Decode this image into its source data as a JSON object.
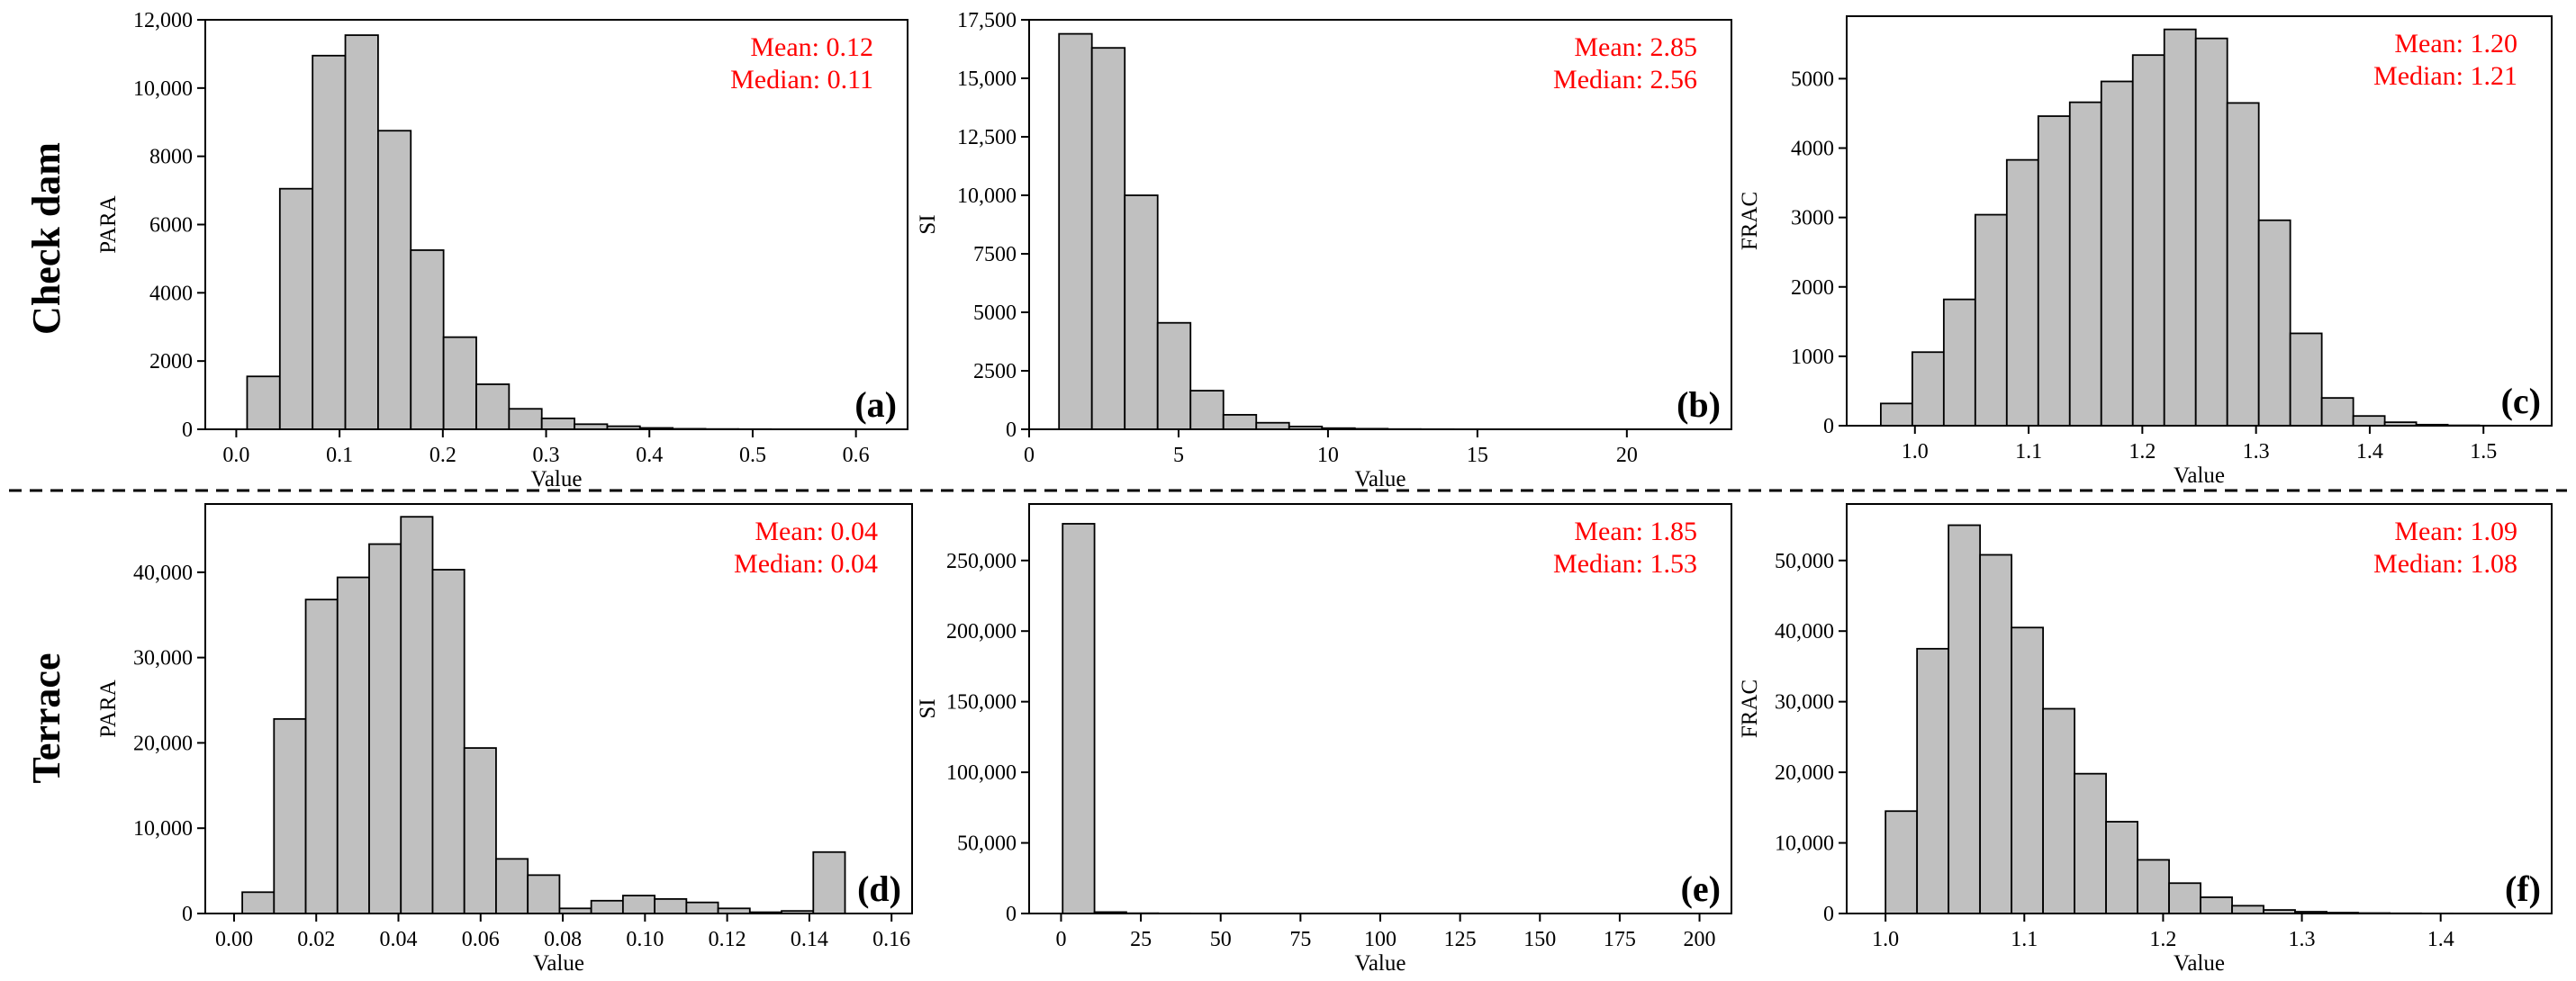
{
  "row_labels": [
    "Check dam",
    "Terrace"
  ],
  "colors": {
    "bar_fill": "#c0c0c0",
    "bar_stroke": "#000000",
    "stats_text": "#ff0000",
    "axis": "#000000"
  },
  "chart_data": [
    {
      "type": "bar",
      "panel": "(a)",
      "xlabel": "Value",
      "ylabel": "PARA",
      "stats": {
        "mean": "Mean: 0.12",
        "median": "Median: 0.11"
      },
      "xlim": [
        -0.03,
        0.65
      ],
      "ylim": [
        0,
        12000
      ],
      "xticks": [
        0.0,
        0.1,
        0.2,
        0.3,
        0.4,
        0.5,
        0.6
      ],
      "xtick_labels": [
        "0.0",
        "0.1",
        "0.2",
        "0.3",
        "0.4",
        "0.5",
        "0.6"
      ],
      "yticks": [
        0,
        2000,
        4000,
        6000,
        8000,
        10000,
        12000
      ],
      "ytick_labels": [
        "0",
        "2000",
        "4000",
        "6000",
        "8000",
        "10,000",
        "12,000"
      ],
      "bin_start": 0.0105,
      "bin_width": 0.0317,
      "values": [
        1550,
        7050,
        10950,
        11550,
        8750,
        5250,
        2700,
        1320,
        600,
        320,
        150,
        90,
        40,
        15,
        8,
        5,
        3,
        2,
        1,
        1
      ]
    },
    {
      "type": "bar",
      "panel": "(b)",
      "xlabel": "Value",
      "ylabel": "SI",
      "stats": {
        "mean": "Mean: 2.85",
        "median": "Median: 2.56"
      },
      "xlim": [
        0,
        23.5
      ],
      "ylim": [
        0,
        17500
      ],
      "xticks": [
        0,
        5,
        10,
        15,
        20
      ],
      "xtick_labels": [
        "0",
        "5",
        "10",
        "15",
        "20"
      ],
      "yticks": [
        0,
        2500,
        5000,
        7500,
        10000,
        12500,
        15000,
        17500
      ],
      "ytick_labels": [
        "0",
        "2500",
        "5000",
        "7500",
        "10,000",
        "12,500",
        "15,000",
        "17,500"
      ],
      "bin_start": 1.0,
      "bin_width": 1.1,
      "values": [
        16900,
        16300,
        10000,
        4550,
        1650,
        620,
        280,
        120,
        50,
        25,
        10,
        6,
        4,
        3,
        2,
        1,
        1,
        1,
        0,
        0
      ]
    },
    {
      "type": "bar",
      "panel": "(c)",
      "xlabel": "Value",
      "ylabel": "FRAC",
      "stats": {
        "mean": "Mean: 1.20",
        "median": "Median: 1.21"
      },
      "xlim": [
        0.94,
        1.56
      ],
      "ylim": [
        0,
        5900
      ],
      "xticks": [
        1.0,
        1.1,
        1.2,
        1.3,
        1.4,
        1.5
      ],
      "xtick_labels": [
        "1.0",
        "1.1",
        "1.2",
        "1.3",
        "1.4",
        "1.5"
      ],
      "yticks": [
        0,
        1000,
        2000,
        3000,
        4000,
        5000
      ],
      "ytick_labels": [
        "0",
        "1000",
        "2000",
        "3000",
        "4000",
        "5000"
      ],
      "bin_start": 0.97,
      "bin_width": 0.0277,
      "values": [
        320,
        1060,
        1820,
        3040,
        3830,
        4460,
        4660,
        4960,
        5340,
        5710,
        5580,
        4650,
        2960,
        1330,
        400,
        140,
        50,
        15,
        5,
        2
      ]
    },
    {
      "type": "bar",
      "panel": "(d)",
      "xlabel": "Value",
      "ylabel": "PARA",
      "stats": {
        "mean": "Mean: 0.04",
        "median": "Median: 0.04"
      },
      "xlim": [
        -0.007,
        0.165
      ],
      "ylim": [
        0,
        48000
      ],
      "xticks": [
        0.0,
        0.02,
        0.04,
        0.06,
        0.08,
        0.1,
        0.12,
        0.14,
        0.16
      ],
      "xtick_labels": [
        "0.00",
        "0.02",
        "0.04",
        "0.06",
        "0.08",
        "0.10",
        "0.12",
        "0.14",
        "0.16"
      ],
      "yticks": [
        0,
        10000,
        20000,
        30000,
        40000
      ],
      "ytick_labels": [
        "0",
        "10,000",
        "20,000",
        "30,000",
        "40,000"
      ],
      "bin_start": 0.002,
      "bin_width": 0.00772,
      "values": [
        2500,
        22800,
        36800,
        39400,
        43300,
        46500,
        40300,
        19400,
        6400,
        4500,
        600,
        1500,
        2100,
        1700,
        1300,
        600,
        150,
        300,
        7200,
        0
      ]
    },
    {
      "type": "bar",
      "panel": "(e)",
      "xlabel": "Value",
      "ylabel": "SI",
      "stats": {
        "mean": "Mean: 1.85",
        "median": "Median: 1.53"
      },
      "xlim": [
        -10,
        210
      ],
      "ylim": [
        0,
        290000
      ],
      "xticks": [
        0,
        25,
        50,
        75,
        100,
        125,
        150,
        175,
        200
      ],
      "xtick_labels": [
        "0",
        "25",
        "50",
        "75",
        "100",
        "125",
        "150",
        "175",
        "200"
      ],
      "yticks": [
        0,
        50000,
        100000,
        150000,
        200000,
        250000
      ],
      "ytick_labels": [
        "0",
        "50,000",
        "100,000",
        "150,000",
        "200,000",
        "250,000"
      ],
      "bin_start": 0.5,
      "bin_width": 9.97,
      "values": [
        276000,
        1000,
        200,
        100,
        50,
        30,
        20,
        10,
        8,
        5,
        4,
        3,
        2,
        2,
        1,
        1,
        1,
        1,
        1,
        1
      ]
    },
    {
      "type": "bar",
      "panel": "(f)",
      "xlabel": "Value",
      "ylabel": "FRAC",
      "stats": {
        "mean": "Mean: 1.09",
        "median": "Median: 1.08"
      },
      "xlim": [
        0.972,
        1.48
      ],
      "ylim": [
        0,
        58000
      ],
      "xticks": [
        1.0,
        1.1,
        1.2,
        1.3,
        1.4
      ],
      "xtick_labels": [
        "1.0",
        "1.1",
        "1.2",
        "1.3",
        "1.4"
      ],
      "yticks": [
        0,
        10000,
        20000,
        30000,
        40000,
        50000
      ],
      "ytick_labels": [
        "0",
        "10,000",
        "20,000",
        "30,000",
        "40,000",
        "50,000"
      ],
      "bin_start": 1.0,
      "bin_width": 0.0227,
      "values": [
        14500,
        37500,
        55000,
        50800,
        40500,
        29000,
        19800,
        13000,
        7600,
        4300,
        2300,
        1100,
        500,
        250,
        120,
        60,
        30,
        15,
        8,
        4
      ]
    }
  ]
}
